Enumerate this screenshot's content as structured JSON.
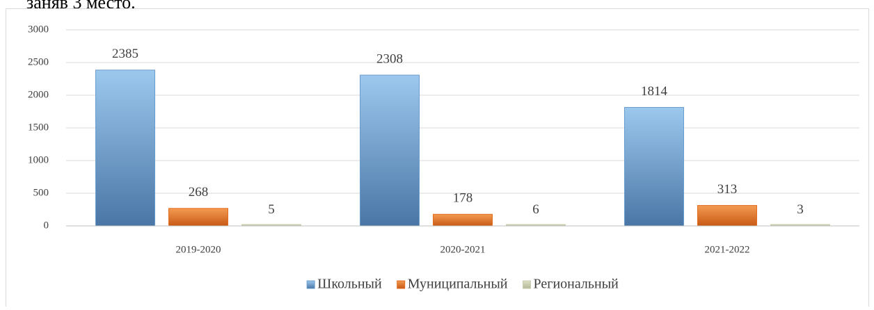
{
  "caption": "заняв 3 место.",
  "chart_data": {
    "type": "bar",
    "categories": [
      "2019-2020",
      "2020-2021",
      "2021-2022"
    ],
    "series": [
      {
        "name": "Школьный",
        "color": "#6a9ccc",
        "values": [
          2385,
          2308,
          1814
        ]
      },
      {
        "name": "Муниципальный",
        "color": "#e36c1e",
        "values": [
          268,
          178,
          313
        ]
      },
      {
        "name": "Региональный",
        "color": "#c9ccae",
        "values": [
          5,
          6,
          3
        ]
      }
    ],
    "ylim": [
      0,
      3000
    ],
    "yticks": [
      0,
      500,
      1000,
      1500,
      2000,
      2500,
      3000
    ],
    "grid": true,
    "legend": "bottom"
  }
}
